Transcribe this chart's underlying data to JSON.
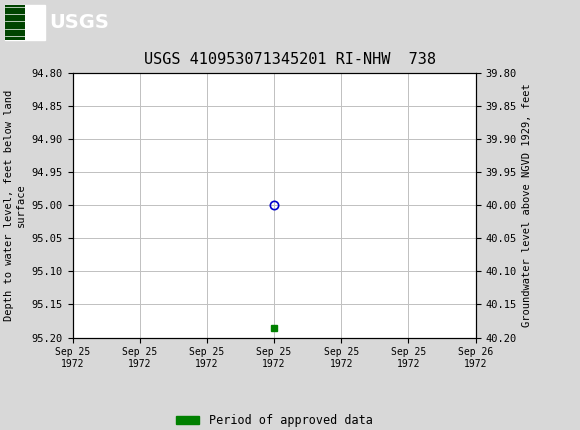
{
  "title": "USGS 410953071345201 RI-NHW  738",
  "title_fontsize": 11,
  "background_color": "#d8d8d8",
  "plot_bg_color": "#ffffff",
  "header_color": "#006633",
  "ylabel_left": "Depth to water level, feet below land\nsurface",
  "ylabel_right": "Groundwater level above NGVD 1929, feet",
  "ylim_left": [
    94.8,
    95.2
  ],
  "ylim_right": [
    40.2,
    39.8
  ],
  "yticks_left": [
    94.8,
    94.85,
    94.9,
    94.95,
    95.0,
    95.05,
    95.1,
    95.15,
    95.2
  ],
  "yticks_right": [
    40.2,
    40.15,
    40.1,
    40.05,
    40.0,
    39.95,
    39.9,
    39.85,
    39.8
  ],
  "xlim": [
    0,
    6
  ],
  "xtick_labels": [
    "Sep 25\n1972",
    "Sep 25\n1972",
    "Sep 25\n1972",
    "Sep 25\n1972",
    "Sep 25\n1972",
    "Sep 25\n1972",
    "Sep 26\n1972"
  ],
  "grid_color": "#c0c0c0",
  "data_point_x": 3,
  "data_point_y": 95.0,
  "data_point_color": "#0000cc",
  "data_point_marker": "o",
  "data_point2_x": 3,
  "data_point2_y": 95.185,
  "data_point2_color": "#008000",
  "data_point2_marker": "s",
  "legend_label": "Period of approved data",
  "legend_color": "#008000",
  "font_family": "monospace"
}
